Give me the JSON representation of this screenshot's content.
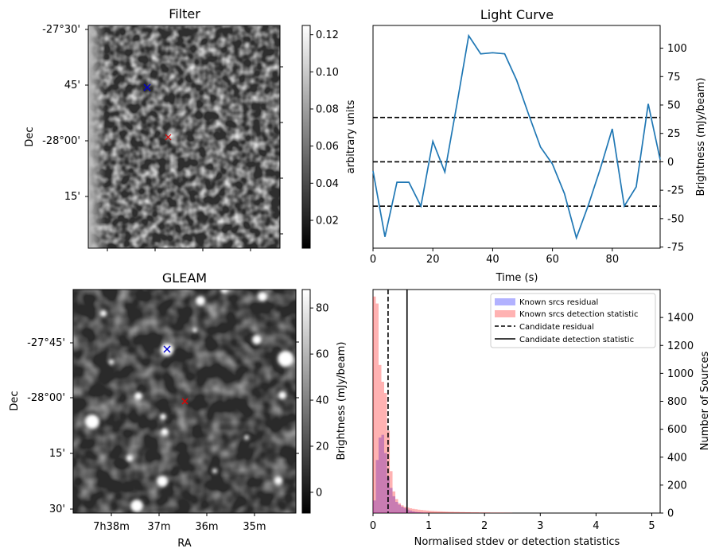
{
  "chart_data": [
    {
      "panel": "filter",
      "type": "heatmap",
      "title": "Filter",
      "ylabel": "Dec",
      "ytick_labels": [
        "-27°30'",
        "45'",
        "-28°00'",
        "15'"
      ],
      "colorbar": {
        "label": "arbitrary units",
        "min": 0.005,
        "max": 0.125,
        "ticks": [
          0.02,
          0.04,
          0.06,
          0.08,
          0.1,
          0.12
        ],
        "tick_labels": [
          "0.02",
          "0.04",
          "0.06",
          "0.08",
          "0.10",
          "0.12"
        ]
      },
      "markers": [
        {
          "name": "known-source",
          "symbol": "x",
          "color": "#0000cc"
        },
        {
          "name": "candidate",
          "symbol": "x",
          "color": "#dd0000"
        }
      ]
    },
    {
      "panel": "light-curve",
      "type": "line",
      "title": "Light Curve",
      "xlabel": "Time (s)",
      "ylabel": "Brightness (mJy/beam)",
      "xlim": [
        0,
        96
      ],
      "ylim": [
        -76,
        120
      ],
      "x_ticks": [
        0,
        20,
        40,
        60,
        80
      ],
      "x_tick_labels": [
        "0",
        "20",
        "40",
        "60",
        "80"
      ],
      "y_ticks": [
        -75,
        -50,
        -25,
        0,
        25,
        50,
        75,
        100
      ],
      "y_tick_labels": [
        "-75",
        "-50",
        "-25",
        "0",
        "25",
        "50",
        "75",
        "100"
      ],
      "color": "#1f77b4",
      "x": [
        0,
        4,
        8,
        12,
        16,
        20,
        24,
        28,
        32,
        36,
        40,
        44,
        48,
        52,
        56,
        60,
        64,
        68,
        72,
        76,
        80,
        84,
        88,
        92,
        96
      ],
      "y": [
        -8,
        -66,
        -18,
        -18,
        -39,
        18,
        -9,
        50,
        111,
        95,
        96,
        95,
        72,
        42,
        13,
        -2,
        -28,
        -67,
        -38,
        -6,
        29,
        -39,
        -22,
        51,
        2
      ],
      "hlines": [
        39,
        0,
        -39
      ]
    },
    {
      "panel": "gleam",
      "type": "heatmap",
      "title": "GLEAM",
      "xlabel": "RA",
      "ylabel": "Dec",
      "ytick_labels": [
        "-27°45'",
        "-28°00'",
        "15'",
        "30'"
      ],
      "xtick_labels": [
        "7h38m",
        "37m",
        "36m",
        "35m"
      ],
      "colorbar": {
        "label": "Brightness (mJy/beam)",
        "min": -9,
        "max": 88,
        "ticks": [
          0,
          20,
          40,
          60,
          80
        ],
        "tick_labels": [
          "0",
          "20",
          "40",
          "60",
          "80"
        ]
      },
      "markers": [
        {
          "name": "known-source",
          "symbol": "x",
          "color": "#0000cc"
        },
        {
          "name": "candidate",
          "symbol": "x",
          "color": "#dd0000"
        }
      ]
    },
    {
      "panel": "histogram",
      "type": "bar",
      "xlabel": "Normalised stdev or detection statistics",
      "ylabel": "Number of Sources",
      "xlim": [
        0,
        5.15
      ],
      "ylim": [
        0,
        1600
      ],
      "bin_width": 0.05,
      "x_ticks": [
        0,
        1,
        2,
        3,
        4,
        5
      ],
      "x_tick_labels": [
        "0",
        "1",
        "2",
        "3",
        "4",
        "5"
      ],
      "y_ticks": [
        0,
        200,
        400,
        600,
        800,
        1000,
        1200,
        1400
      ],
      "y_tick_labels": [
        "0",
        "200",
        "400",
        "600",
        "800",
        "1000",
        "1200",
        "1400"
      ],
      "series": [
        {
          "name": "Known srcs residual",
          "color": "#0000ff",
          "alpha": 0.3,
          "values": [
            90,
            380,
            540,
            560,
            430,
            260,
            180,
            120,
            80,
            60,
            45,
            35,
            25,
            18,
            12,
            8,
            6,
            4,
            3,
            2
          ]
        },
        {
          "name": "Known srcs detection statistic",
          "color": "#ff0000",
          "alpha": 0.3,
          "values": [
            1550,
            1500,
            1060,
            940,
            860,
            590,
            300,
            155,
            100,
            70,
            55,
            45,
            40,
            34,
            30,
            27,
            24,
            22,
            20,
            18,
            16,
            15,
            14,
            13,
            12,
            11,
            10,
            9,
            9,
            8,
            8,
            7,
            7,
            6,
            6,
            5,
            5,
            5,
            4,
            4,
            4,
            4,
            3,
            3,
            3,
            3,
            3,
            2,
            2,
            2
          ]
        }
      ],
      "vlines": [
        {
          "name": "Candidate residual",
          "x": 0.27,
          "style": "dashed"
        },
        {
          "name": "Candidate detection statistic",
          "x": 0.61,
          "style": "solid"
        }
      ],
      "legend": {
        "position": "top-right",
        "entries": [
          "Known srcs residual",
          "Known srcs detection statistic",
          "Candidate residual",
          "Candidate detection statistic"
        ]
      }
    }
  ]
}
